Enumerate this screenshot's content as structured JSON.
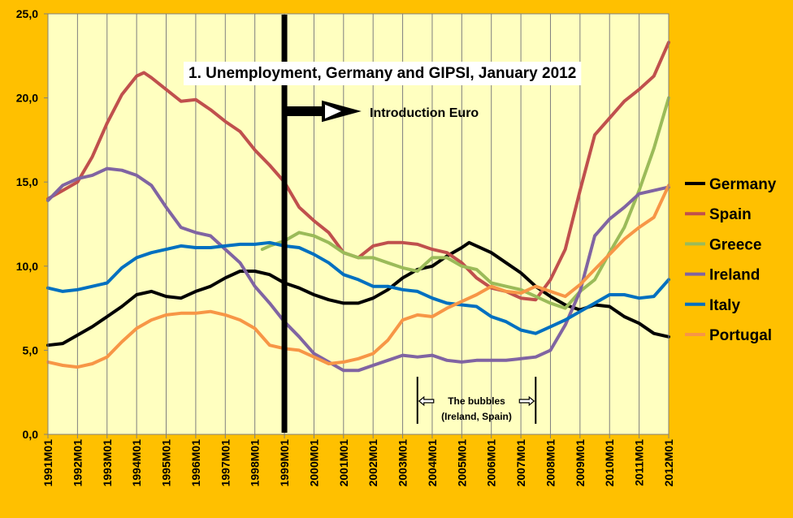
{
  "chart_data": {
    "type": "line",
    "title": "1. Unemployment, Germany and GIPSI, January 2012",
    "xlabel": "",
    "ylabel": "",
    "ylim": [
      0,
      25
    ],
    "yticks": [
      "0,0",
      "5,0",
      "10,0",
      "15,0",
      "20,0",
      "25,0"
    ],
    "x_tick_labels": [
      "1991M01",
      "1992M01",
      "1993M01",
      "1994M01",
      "1995M01",
      "1996M01",
      "1997M01",
      "1998M01",
      "1999M01",
      "2000M01",
      "2001M01",
      "2002M01",
      "2003M01",
      "2004M01",
      "2005M01",
      "2006M01",
      "2007M01",
      "2008M01",
      "2009M01",
      "2010M01",
      "2011M01",
      "2012M01"
    ],
    "grid": "vertical",
    "legend_position": "right",
    "colors": {
      "background": "#FFC000",
      "plot_area": "#FFFFC0",
      "gridline": "#7F7F7F"
    },
    "annotations": {
      "euro_label": "Introduction Euro",
      "euro_date": "1999M01",
      "bubbles_line1": "The bubbles",
      "bubbles_line2": "(Ireland, Spain)",
      "bubbles_start": "2003M07",
      "bubbles_end": "2007M07"
    },
    "series": [
      {
        "name": "Germany",
        "color": "#000000",
        "points": [
          [
            "1991-01",
            5.3
          ],
          [
            "1991-07",
            5.4
          ],
          [
            "1992-01",
            5.9
          ],
          [
            "1992-07",
            6.4
          ],
          [
            "1993-01",
            7.0
          ],
          [
            "1993-07",
            7.6
          ],
          [
            "1994-01",
            8.3
          ],
          [
            "1994-07",
            8.5
          ],
          [
            "1995-01",
            8.2
          ],
          [
            "1995-07",
            8.1
          ],
          [
            "1996-01",
            8.5
          ],
          [
            "1996-07",
            8.8
          ],
          [
            "1997-01",
            9.3
          ],
          [
            "1997-07",
            9.7
          ],
          [
            "1998-01",
            9.7
          ],
          [
            "1998-07",
            9.5
          ],
          [
            "1999-01",
            9.0
          ],
          [
            "1999-07",
            8.7
          ],
          [
            "2000-01",
            8.3
          ],
          [
            "2000-07",
            8.0
          ],
          [
            "2001-01",
            7.8
          ],
          [
            "2001-07",
            7.8
          ],
          [
            "2002-01",
            8.1
          ],
          [
            "2002-07",
            8.6
          ],
          [
            "2003-01",
            9.3
          ],
          [
            "2003-07",
            9.8
          ],
          [
            "2004-01",
            10.0
          ],
          [
            "2004-07",
            10.6
          ],
          [
            "2005-01",
            11.1
          ],
          [
            "2005-04",
            11.4
          ],
          [
            "2005-07",
            11.2
          ],
          [
            "2006-01",
            10.8
          ],
          [
            "2006-07",
            10.2
          ],
          [
            "2007-01",
            9.6
          ],
          [
            "2007-07",
            8.8
          ],
          [
            "2008-01",
            8.2
          ],
          [
            "2008-07",
            7.7
          ],
          [
            "2009-01",
            7.4
          ],
          [
            "2009-07",
            7.7
          ],
          [
            "2010-01",
            7.6
          ],
          [
            "2010-07",
            7.0
          ],
          [
            "2011-01",
            6.6
          ],
          [
            "2011-07",
            6.0
          ],
          [
            "2012-01",
            5.8
          ]
        ]
      },
      {
        "name": "Spain",
        "color": "#C0504D",
        "points": [
          [
            "1991-01",
            14.0
          ],
          [
            "1991-07",
            14.5
          ],
          [
            "1992-01",
            15.0
          ],
          [
            "1992-07",
            16.5
          ],
          [
            "1993-01",
            18.5
          ],
          [
            "1993-07",
            20.2
          ],
          [
            "1994-01",
            21.3
          ],
          [
            "1994-04",
            21.5
          ],
          [
            "1994-07",
            21.2
          ],
          [
            "1995-01",
            20.5
          ],
          [
            "1995-07",
            19.8
          ],
          [
            "1996-01",
            19.9
          ],
          [
            "1996-07",
            19.3
          ],
          [
            "1997-01",
            18.6
          ],
          [
            "1997-07",
            18.0
          ],
          [
            "1998-01",
            16.9
          ],
          [
            "1998-07",
            16.0
          ],
          [
            "1999-01",
            15.0
          ],
          [
            "1999-07",
            13.5
          ],
          [
            "2000-01",
            12.7
          ],
          [
            "2000-07",
            12.0
          ],
          [
            "2001-01",
            10.8
          ],
          [
            "2001-07",
            10.5
          ],
          [
            "2002-01",
            11.2
          ],
          [
            "2002-07",
            11.4
          ],
          [
            "2003-01",
            11.4
          ],
          [
            "2003-07",
            11.3
          ],
          [
            "2004-01",
            11.0
          ],
          [
            "2004-07",
            10.8
          ],
          [
            "2005-01",
            10.2
          ],
          [
            "2005-07",
            9.3
          ],
          [
            "2006-01",
            8.7
          ],
          [
            "2006-07",
            8.5
          ],
          [
            "2007-01",
            8.1
          ],
          [
            "2007-07",
            8.0
          ],
          [
            "2008-01",
            9.2
          ],
          [
            "2008-07",
            11.0
          ],
          [
            "2009-01",
            14.5
          ],
          [
            "2009-07",
            17.8
          ],
          [
            "2010-01",
            18.8
          ],
          [
            "2010-07",
            19.8
          ],
          [
            "2011-01",
            20.5
          ],
          [
            "2011-07",
            21.3
          ],
          [
            "2012-01",
            23.3
          ]
        ]
      },
      {
        "name": "Greece",
        "color": "#9BBB59",
        "points": [
          [
            "1998-04",
            11.0
          ],
          [
            "1998-07",
            11.2
          ],
          [
            "1999-01",
            11.5
          ],
          [
            "1999-07",
            12.0
          ],
          [
            "2000-01",
            11.8
          ],
          [
            "2000-07",
            11.4
          ],
          [
            "2001-01",
            10.8
          ],
          [
            "2001-07",
            10.5
          ],
          [
            "2002-01",
            10.5
          ],
          [
            "2002-07",
            10.2
          ],
          [
            "2003-01",
            9.9
          ],
          [
            "2003-07",
            9.7
          ],
          [
            "2004-01",
            10.5
          ],
          [
            "2004-07",
            10.5
          ],
          [
            "2005-01",
            10.0
          ],
          [
            "2005-07",
            9.8
          ],
          [
            "2006-01",
            9.0
          ],
          [
            "2006-07",
            8.8
          ],
          [
            "2007-01",
            8.6
          ],
          [
            "2007-07",
            8.2
          ],
          [
            "2008-01",
            7.8
          ],
          [
            "2008-07",
            7.5
          ],
          [
            "2009-01",
            8.5
          ],
          [
            "2009-07",
            9.2
          ],
          [
            "2010-01",
            10.8
          ],
          [
            "2010-07",
            12.3
          ],
          [
            "2011-01",
            14.5
          ],
          [
            "2011-07",
            17.0
          ],
          [
            "2012-01",
            20.0
          ]
        ]
      },
      {
        "name": "Ireland",
        "color": "#8064A2",
        "points": [
          [
            "1991-01",
            13.9
          ],
          [
            "1991-07",
            14.8
          ],
          [
            "1992-01",
            15.2
          ],
          [
            "1992-07",
            15.4
          ],
          [
            "1993-01",
            15.8
          ],
          [
            "1993-07",
            15.7
          ],
          [
            "1994-01",
            15.4
          ],
          [
            "1994-07",
            14.8
          ],
          [
            "1995-01",
            13.5
          ],
          [
            "1995-07",
            12.3
          ],
          [
            "1996-01",
            12.0
          ],
          [
            "1996-07",
            11.8
          ],
          [
            "1997-01",
            11.0
          ],
          [
            "1997-07",
            10.2
          ],
          [
            "1998-01",
            8.8
          ],
          [
            "1998-07",
            7.8
          ],
          [
            "1999-01",
            6.7
          ],
          [
            "1999-07",
            5.8
          ],
          [
            "2000-01",
            4.8
          ],
          [
            "2000-07",
            4.3
          ],
          [
            "2001-01",
            3.8
          ],
          [
            "2001-07",
            3.8
          ],
          [
            "2002-01",
            4.1
          ],
          [
            "2002-07",
            4.4
          ],
          [
            "2003-01",
            4.7
          ],
          [
            "2003-07",
            4.6
          ],
          [
            "2004-01",
            4.7
          ],
          [
            "2004-07",
            4.4
          ],
          [
            "2005-01",
            4.3
          ],
          [
            "2005-07",
            4.4
          ],
          [
            "2006-01",
            4.4
          ],
          [
            "2006-07",
            4.4
          ],
          [
            "2007-01",
            4.5
          ],
          [
            "2007-07",
            4.6
          ],
          [
            "2008-01",
            5.0
          ],
          [
            "2008-07",
            6.5
          ],
          [
            "2009-01",
            8.5
          ],
          [
            "2009-07",
            11.8
          ],
          [
            "2010-01",
            12.8
          ],
          [
            "2010-07",
            13.5
          ],
          [
            "2011-01",
            14.3
          ],
          [
            "2011-07",
            14.5
          ],
          [
            "2012-01",
            14.7
          ]
        ]
      },
      {
        "name": "Italy",
        "color": "#0070C0",
        "points": [
          [
            "1991-01",
            8.7
          ],
          [
            "1991-07",
            8.5
          ],
          [
            "1992-01",
            8.6
          ],
          [
            "1992-07",
            8.8
          ],
          [
            "1993-01",
            9.0
          ],
          [
            "1993-07",
            9.9
          ],
          [
            "1994-01",
            10.5
          ],
          [
            "1994-07",
            10.8
          ],
          [
            "1995-01",
            11.0
          ],
          [
            "1995-07",
            11.2
          ],
          [
            "1996-01",
            11.1
          ],
          [
            "1996-07",
            11.1
          ],
          [
            "1997-01",
            11.2
          ],
          [
            "1997-07",
            11.3
          ],
          [
            "1998-01",
            11.3
          ],
          [
            "1998-07",
            11.4
          ],
          [
            "1999-01",
            11.2
          ],
          [
            "1999-07",
            11.1
          ],
          [
            "2000-01",
            10.7
          ],
          [
            "2000-07",
            10.2
          ],
          [
            "2001-01",
            9.5
          ],
          [
            "2001-07",
            9.2
          ],
          [
            "2002-01",
            8.8
          ],
          [
            "2002-07",
            8.8
          ],
          [
            "2003-01",
            8.6
          ],
          [
            "2003-07",
            8.5
          ],
          [
            "2004-01",
            8.1
          ],
          [
            "2004-07",
            7.8
          ],
          [
            "2005-01",
            7.7
          ],
          [
            "2005-07",
            7.6
          ],
          [
            "2006-01",
            7.0
          ],
          [
            "2006-07",
            6.7
          ],
          [
            "2007-01",
            6.2
          ],
          [
            "2007-07",
            6.0
          ],
          [
            "2008-01",
            6.4
          ],
          [
            "2008-07",
            6.8
          ],
          [
            "2009-01",
            7.3
          ],
          [
            "2009-07",
            7.8
          ],
          [
            "2010-01",
            8.3
          ],
          [
            "2010-07",
            8.3
          ],
          [
            "2011-01",
            8.1
          ],
          [
            "2011-07",
            8.2
          ],
          [
            "2012-01",
            9.2
          ]
        ]
      },
      {
        "name": "Portugal",
        "color": "#F79646",
        "points": [
          [
            "1991-01",
            4.3
          ],
          [
            "1991-07",
            4.1
          ],
          [
            "1992-01",
            4.0
          ],
          [
            "1992-07",
            4.2
          ],
          [
            "1993-01",
            4.6
          ],
          [
            "1993-07",
            5.5
          ],
          [
            "1994-01",
            6.3
          ],
          [
            "1994-07",
            6.8
          ],
          [
            "1995-01",
            7.1
          ],
          [
            "1995-07",
            7.2
          ],
          [
            "1996-01",
            7.2
          ],
          [
            "1996-07",
            7.3
          ],
          [
            "1997-01",
            7.1
          ],
          [
            "1997-07",
            6.8
          ],
          [
            "1998-01",
            6.3
          ],
          [
            "1998-07",
            5.3
          ],
          [
            "1999-01",
            5.1
          ],
          [
            "1999-07",
            5.0
          ],
          [
            "2000-01",
            4.6
          ],
          [
            "2000-07",
            4.2
          ],
          [
            "2001-01",
            4.3
          ],
          [
            "2001-07",
            4.5
          ],
          [
            "2002-01",
            4.8
          ],
          [
            "2002-07",
            5.6
          ],
          [
            "2003-01",
            6.8
          ],
          [
            "2003-07",
            7.1
          ],
          [
            "2004-01",
            7.0
          ],
          [
            "2004-07",
            7.5
          ],
          [
            "2005-01",
            7.9
          ],
          [
            "2005-07",
            8.3
          ],
          [
            "2006-01",
            8.8
          ],
          [
            "2006-07",
            8.5
          ],
          [
            "2007-01",
            8.4
          ],
          [
            "2007-07",
            8.8
          ],
          [
            "2008-01",
            8.5
          ],
          [
            "2008-07",
            8.2
          ],
          [
            "2009-01",
            8.9
          ],
          [
            "2009-07",
            9.8
          ],
          [
            "2010-01",
            10.7
          ],
          [
            "2010-07",
            11.6
          ],
          [
            "2011-01",
            12.3
          ],
          [
            "2011-07",
            12.9
          ],
          [
            "2012-01",
            14.8
          ]
        ]
      }
    ]
  }
}
